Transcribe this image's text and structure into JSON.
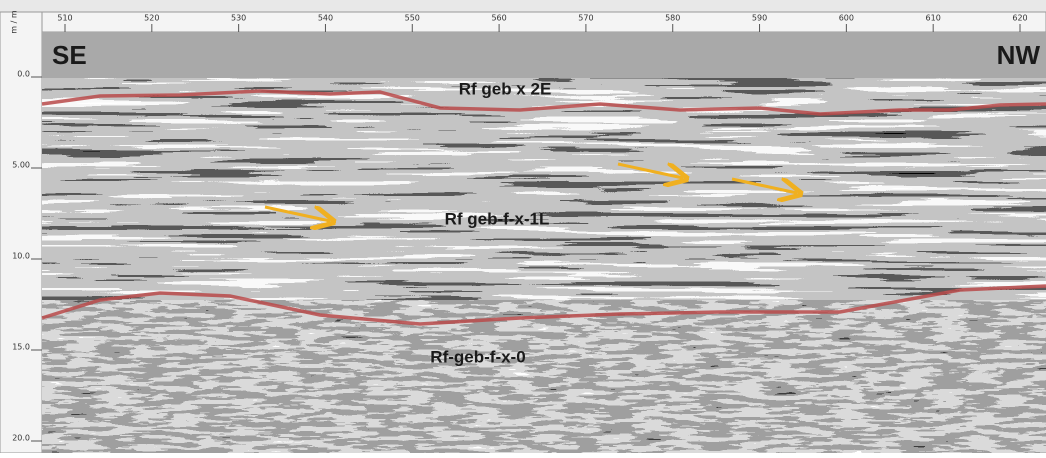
{
  "axis": {
    "unit": "m / m",
    "top_ticks": [
      510,
      520,
      530,
      540,
      550,
      560,
      570,
      580,
      590,
      600,
      610,
      620
    ],
    "left_ticks": [
      "0.0",
      "5.00",
      "10.0",
      "15.0",
      "20.0"
    ]
  },
  "labels": {
    "left_direction": "SE",
    "right_direction": "NW",
    "layers": [
      "Rf geb x 2E",
      "Rf geb-f-x-1L",
      "Rf-geb-f-x-0"
    ]
  }
}
